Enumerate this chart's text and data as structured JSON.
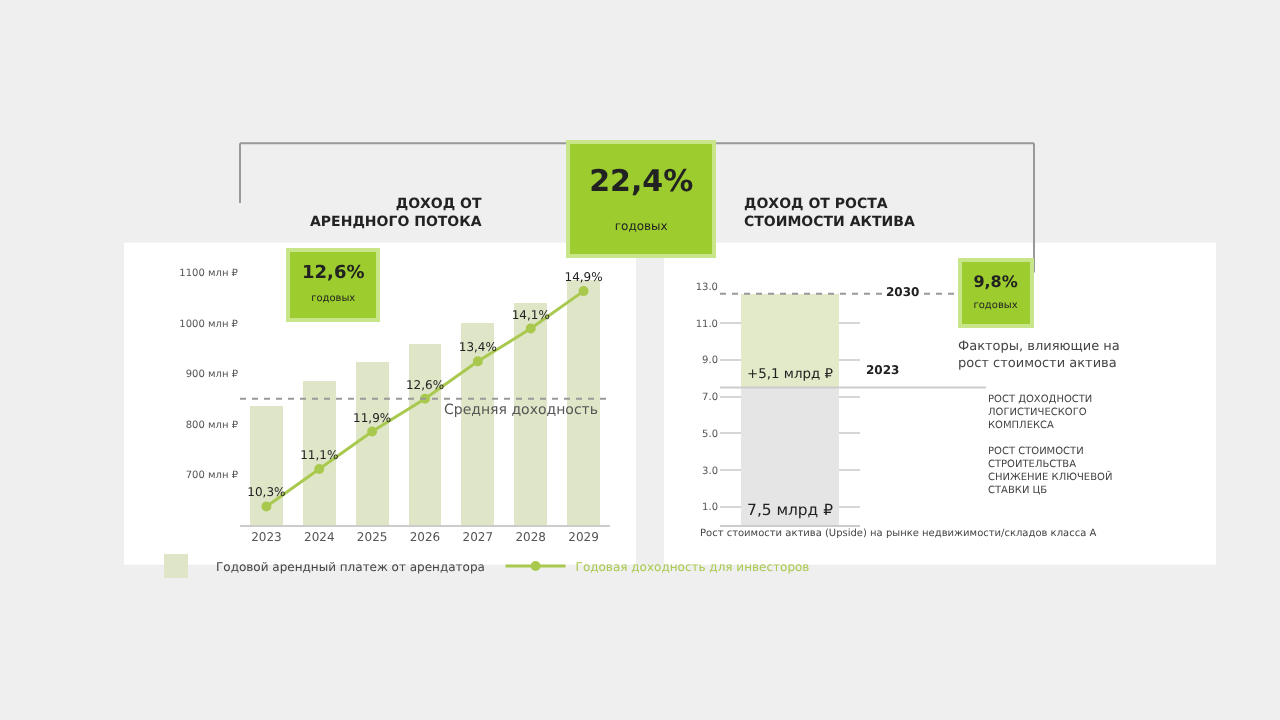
{
  "chart_data": [
    {
      "type": "other",
      "annotations": [
        "22,4%",
        "годовых"
      ]
    },
    {
      "type": "bar",
      "title": "ДОХОД ОТ\nАРЕНДНОГО ПОТОКА",
      "categories": [
        "2023",
        "2024",
        "2025",
        "2026",
        "2027",
        "2028",
        "2029"
      ],
      "series": [
        {
          "name": "Годовой арендный платеж от арендатора",
          "type": "bar",
          "color": "#dfe6c8",
          "values": [
            835,
            885,
            923,
            958,
            1000,
            1040,
            1085
          ]
        },
        {
          "name": "Годовая доходность для инвесторов",
          "type": "line",
          "axis": "y2",
          "color": "#a9c94e",
          "marker": "circle",
          "values": [
            10.3,
            11.1,
            11.9,
            12.6,
            13.4,
            14.1,
            14.9
          ],
          "value_labels": [
            "10,3%",
            "11,1%",
            "11,9%",
            "12,6%",
            "13,4%",
            "14,1%",
            "14,9%"
          ]
        }
      ],
      "ylim": [
        600,
        1100
      ],
      "yticks": [
        {
          "value": 700,
          "label": "700 млн ₽"
        },
        {
          "value": 800,
          "label": "800 млн ₽"
        },
        {
          "value": 900,
          "label": "900 млн ₽"
        },
        {
          "value": 1000,
          "label": "1000 млн ₽"
        },
        {
          "value": 1100,
          "label": "1100 млн ₽"
        }
      ],
      "ref_lines": [
        {
          "axis": "y2",
          "value": 12.6,
          "label": "Средняя доходность",
          "line_style": "dotted",
          "color": "#999999"
        }
      ],
      "annotations": [
        "12,6%",
        "годовых"
      ],
      "grid": false,
      "legend": "bottom"
    },
    {
      "type": "bar",
      "title": "ДОХОД ОТ РОСТА\nСТОИМОСТИ АКТИВА",
      "stacked": true,
      "categories": [
        null
      ],
      "series": [
        {
          "color": "#e5e5e5",
          "values": [
            7.5
          ],
          "value_labels": [
            "7,5 млрд ₽"
          ]
        },
        {
          "color": "#e3eac9",
          "values": [
            5.1
          ],
          "value_labels": [
            "+5,1 млрд ₽"
          ]
        }
      ],
      "ylim": [
        0,
        13
      ],
      "yticks": [
        {
          "value": 1,
          "label": "1.0"
        },
        {
          "value": 3,
          "label": "3.0"
        },
        {
          "value": 5,
          "label": "5.0"
        },
        {
          "value": 7,
          "label": "7.0"
        },
        {
          "value": 9,
          "label": "9.0"
        },
        {
          "value": 11,
          "label": "11.0"
        },
        {
          "value": 13,
          "label": "13.0"
        }
      ],
      "ref_lines": [
        {
          "axis": "y",
          "value": 12.6,
          "line_style": "dotted",
          "color": "#999999"
        },
        {
          "axis": "y",
          "value": 7.5,
          "line_style": "solid",
          "color": "#cccccc"
        }
      ],
      "annotations": [
        "9,8%",
        "годовых",
        "Факторы, влияющие на\nрост стоимости актива",
        "РОСТ ДОХОДНОСТИ\nЛОГИСТИЧЕСКОГО\nКОМПЛЕКСА",
        "РОСТ СТОИМОСТИ\nСТРОИТЕЛЬСТВА",
        "СНИЖЕНИЕ КЛЮЧЕВОЙ\nСТАВКИ ЦБ",
        "Рост стоимости актива (Upside) на рынке недвижимости/складов класса А",
        {
          "text": "2030",
          "y": 12.6
        },
        "2023"
      ],
      "grid": "y"
    }
  ]
}
